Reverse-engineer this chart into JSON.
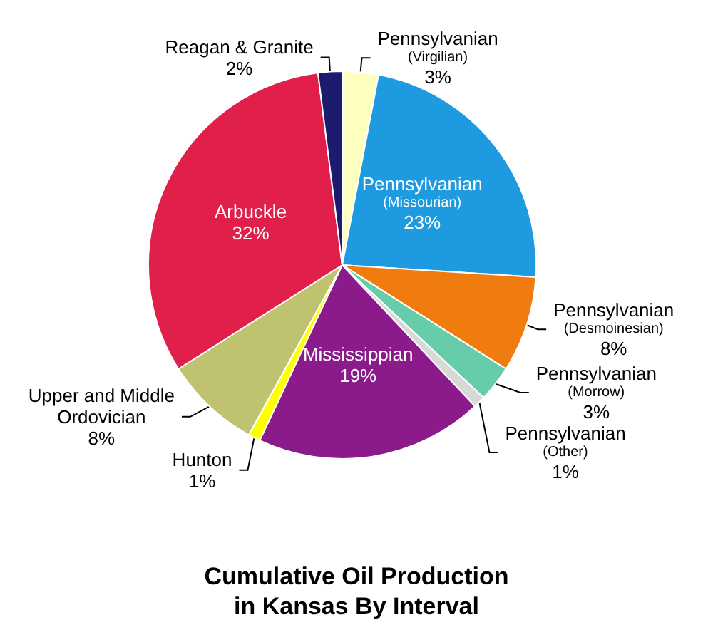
{
  "chart_data": {
    "type": "pie",
    "title": "Cumulative Oil Production\nin Kansas By Interval",
    "categories": [
      "Pennsylvanian\n(Virgilian)",
      "Pennsylvanian\n(Missourian)",
      "Pennsylvanian\n(Desmoinesian)",
      "Pennsylvanian\n(Morrow)",
      "Pennsylvanian\n(Other)",
      "Mississippian",
      "Hunton",
      "Upper and Middle\nOrdovician",
      "Arbuckle",
      "Reagan & Granite"
    ],
    "values": [
      3,
      23,
      8,
      3,
      1,
      19,
      1,
      8,
      32,
      2
    ],
    "value_labels": [
      "3%",
      "23%",
      "8%",
      "3%",
      "1%",
      "19%",
      "1%",
      "8%",
      "32%",
      "2%"
    ],
    "colors": [
      "#ffffc0",
      "#1e9ae0",
      "#f07c10",
      "#66ccaa",
      "#d8d8d8",
      "#8b1a8b",
      "#ffff00",
      "#bfc26e",
      "#e0204a",
      "#1c1c6e"
    ],
    "legend": false
  }
}
